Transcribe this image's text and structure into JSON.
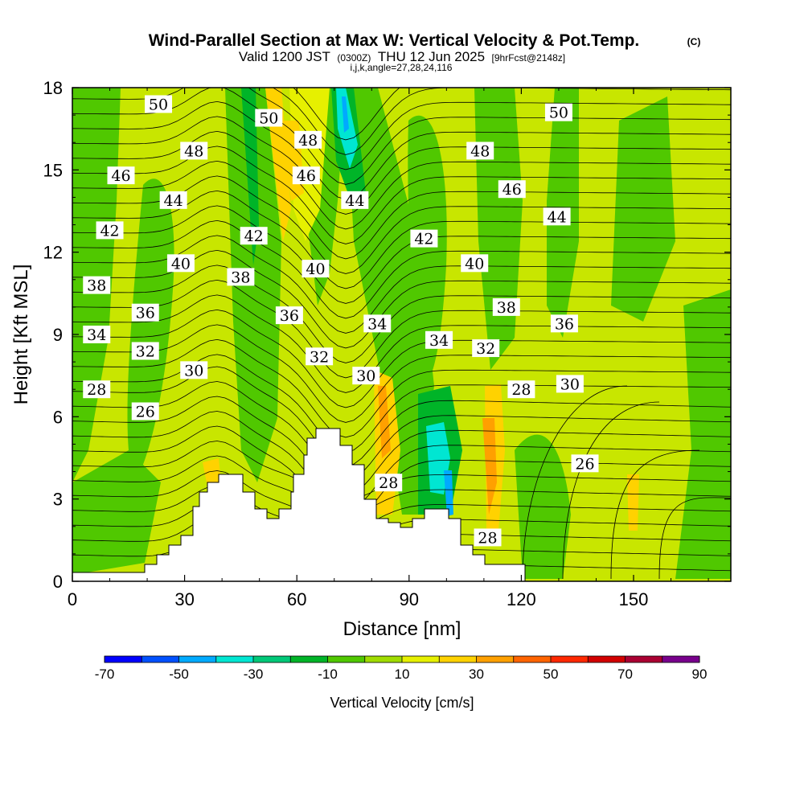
{
  "header": {
    "title": "Wind-Parallel Section at Max W: Vertical Velocity & Pot.Temp.",
    "copyright": "(C)",
    "valid_prefix": "Valid 1200 JST",
    "valid_utc": "(0300Z)",
    "valid_date": "THU 12 Jun 2025",
    "forecast": "[9hrFcst@2148z]",
    "params": "i,j,k,angle=27,28,24,116"
  },
  "chart_data": {
    "type": "heatmap",
    "xlabel": "Distance [nm]",
    "ylabel": "Height [Kft MSL]",
    "xlim": [
      0,
      176
    ],
    "ylim": [
      0,
      18
    ],
    "xticks": [
      "0",
      "30",
      "60",
      "90",
      "120",
      "150"
    ],
    "yticks": [
      "0",
      "3",
      "6",
      "9",
      "12",
      "15",
      "18"
    ],
    "colorbar": {
      "label": "Vertical Velocity [cm/s]",
      "ticks": [
        "-70",
        "-50",
        "-30",
        "-10",
        "10",
        "30",
        "50",
        "70",
        "90"
      ],
      "levels": [
        -70,
        -60,
        -50,
        -40,
        -30,
        -20,
        -10,
        0,
        10,
        20,
        30,
        40,
        50,
        60,
        70,
        80,
        90
      ],
      "colors": [
        "#0000ff",
        "#0050ff",
        "#00aaff",
        "#00e6d2",
        "#00c878",
        "#00b428",
        "#50c800",
        "#a0dc00",
        "#e6f000",
        "#ffd200",
        "#ffa000",
        "#ff6400",
        "#ff2800",
        "#d20000",
        "#aa0032",
        "#78008c"
      ]
    },
    "background_color": "#c8e600",
    "theta_contour_labels": [
      {
        "value": "50",
        "x": 23,
        "y": 17.4
      },
      {
        "value": "50",
        "x": 52.5,
        "y": 16.9
      },
      {
        "value": "50",
        "x": 130,
        "y": 17.1
      },
      {
        "value": "48",
        "x": 32.5,
        "y": 15.7
      },
      {
        "value": "48",
        "x": 63,
        "y": 16.1
      },
      {
        "value": "48",
        "x": 109,
        "y": 15.7
      },
      {
        "value": "46",
        "x": 13,
        "y": 14.8
      },
      {
        "value": "46",
        "x": 62.5,
        "y": 14.8
      },
      {
        "value": "46",
        "x": 117.5,
        "y": 14.3
      },
      {
        "value": "44",
        "x": 27,
        "y": 13.9
      },
      {
        "value": "44",
        "x": 75.5,
        "y": 13.9
      },
      {
        "value": "44",
        "x": 129.5,
        "y": 13.3
      },
      {
        "value": "42",
        "x": 10,
        "y": 12.8
      },
      {
        "value": "42",
        "x": 48.5,
        "y": 12.6
      },
      {
        "value": "42",
        "x": 94,
        "y": 12.5
      },
      {
        "value": "40",
        "x": 29,
        "y": 11.6
      },
      {
        "value": "40",
        "x": 65,
        "y": 11.4
      },
      {
        "value": "40",
        "x": 107.5,
        "y": 11.6
      },
      {
        "value": "38",
        "x": 6.5,
        "y": 10.8
      },
      {
        "value": "38",
        "x": 45,
        "y": 11.1
      },
      {
        "value": "38",
        "x": 116,
        "y": 10.0
      },
      {
        "value": "36",
        "x": 19.5,
        "y": 9.8
      },
      {
        "value": "36",
        "x": 58,
        "y": 9.7
      },
      {
        "value": "36",
        "x": 131.5,
        "y": 9.4
      },
      {
        "value": "34",
        "x": 6.5,
        "y": 9.0
      },
      {
        "value": "34",
        "x": 81.5,
        "y": 9.4
      },
      {
        "value": "34",
        "x": 98,
        "y": 8.8
      },
      {
        "value": "32",
        "x": 19.5,
        "y": 8.4
      },
      {
        "value": "32",
        "x": 66,
        "y": 8.2
      },
      {
        "value": "32",
        "x": 110.5,
        "y": 8.5
      },
      {
        "value": "30",
        "x": 32.5,
        "y": 7.7
      },
      {
        "value": "30",
        "x": 78.5,
        "y": 7.5
      },
      {
        "value": "30",
        "x": 133,
        "y": 7.2
      },
      {
        "value": "28",
        "x": 6.5,
        "y": 7.0
      },
      {
        "value": "28",
        "x": 120,
        "y": 7.0
      },
      {
        "value": "28",
        "x": 84.5,
        "y": 3.6
      },
      {
        "value": "28",
        "x": 111,
        "y": 1.6
      },
      {
        "value": "26",
        "x": 19.5,
        "y": 6.2
      },
      {
        "value": "26",
        "x": 137,
        "y": 4.3
      }
    ]
  }
}
